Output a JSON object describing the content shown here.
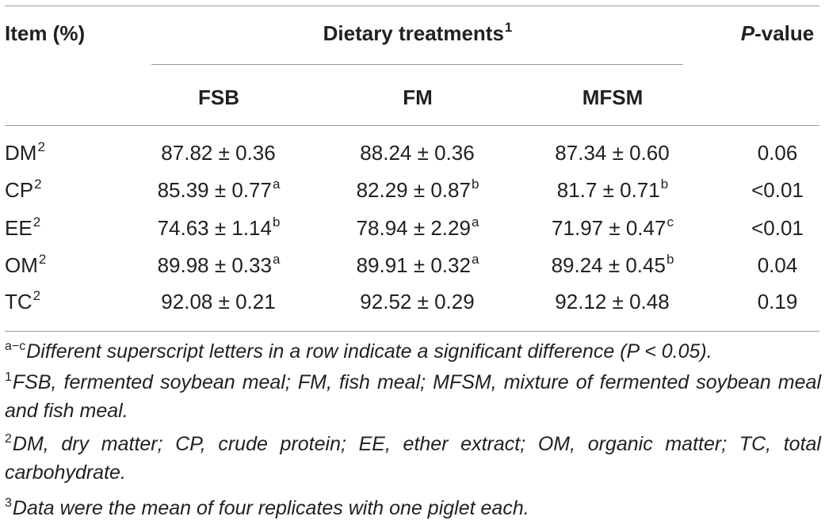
{
  "header": {
    "item_label": "Item (%)",
    "group_label": "Dietary treatments",
    "group_sup": "1",
    "pvalue_italic": "P",
    "pvalue_rest": "-value",
    "columns": [
      "FSB",
      "FM",
      "MFSM"
    ]
  },
  "rows": [
    {
      "item": "DM",
      "item_sup": "2",
      "cells": [
        {
          "v": "87.82 ± 0.36",
          "s": ""
        },
        {
          "v": "88.24 ± 0.36",
          "s": ""
        },
        {
          "v": "87.34 ± 0.60",
          "s": ""
        }
      ],
      "p": "0.06"
    },
    {
      "item": "CP",
      "item_sup": "2",
      "cells": [
        {
          "v": "85.39 ± 0.77",
          "s": "a"
        },
        {
          "v": "82.29 ± 0.87",
          "s": "b"
        },
        {
          "v": "81.7 ± 0.71",
          "s": "b"
        }
      ],
      "p": "<0.01"
    },
    {
      "item": "EE",
      "item_sup": "2",
      "cells": [
        {
          "v": "74.63 ± 1.14",
          "s": "b"
        },
        {
          "v": "78.94 ± 2.29",
          "s": "a"
        },
        {
          "v": "71.97 ± 0.47",
          "s": "c"
        }
      ],
      "p": "<0.01"
    },
    {
      "item": "OM",
      "item_sup": "2",
      "cells": [
        {
          "v": "89.98 ± 0.33",
          "s": "a"
        },
        {
          "v": "89.91 ± 0.32",
          "s": "a"
        },
        {
          "v": "89.24 ± 0.45",
          "s": "b"
        }
      ],
      "p": "0.04"
    },
    {
      "item": "TC",
      "item_sup": "2",
      "cells": [
        {
          "v": "92.08 ± 0.21",
          "s": ""
        },
        {
          "v": "92.52 ± 0.29",
          "s": ""
        },
        {
          "v": "92.12 ± 0.48",
          "s": ""
        }
      ],
      "p": "0.19"
    }
  ],
  "footnotes": [
    {
      "sup": "a−c",
      "text": "Different superscript letters in a row indicate a significant difference (P < 0.05)."
    },
    {
      "sup": "1",
      "text": "FSB, fermented soybean meal; FM, fish meal; MFSM, mixture of fermented soybean meal and fish meal."
    },
    {
      "sup": "2",
      "text": "DM, dry matter; CP, crude protein; EE, ether extract; OM, organic matter; TC, total carbohydrate."
    },
    {
      "sup": "3",
      "text": "Data were the mean of four replicates with one piglet each."
    }
  ]
}
